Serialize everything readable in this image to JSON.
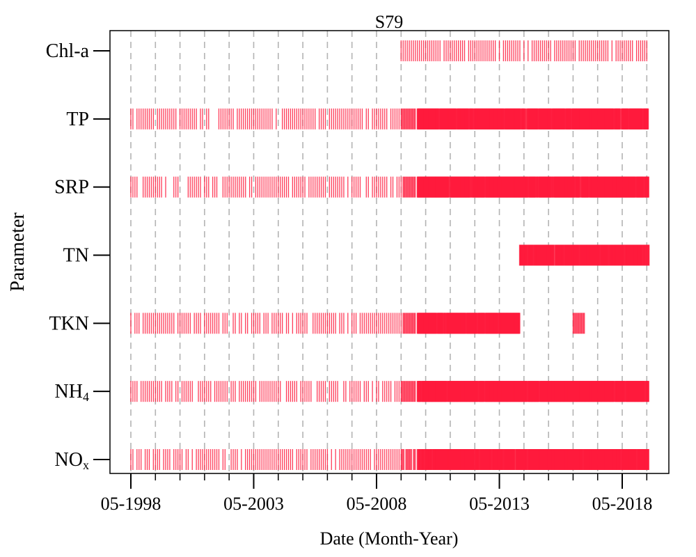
{
  "chart_data": {
    "type": "timeline",
    "title": "S79",
    "xlabel": "Date (Month-Year)",
    "ylabel": "Parameter",
    "x_range": [
      "1997-09",
      "2020-09"
    ],
    "x_ticks": [
      "1998-05",
      "2003-05",
      "2008-05",
      "2013-05",
      "2018-05"
    ],
    "x_tick_labels": [
      "05-1998",
      "05-2003",
      "05-2008",
      "05-2013",
      "05-2018"
    ],
    "grid": {
      "x_dashed": true,
      "interval": "1 year (May)"
    },
    "mark_color": "#ff1a3c",
    "categories": [
      {
        "label": "Chl-a",
        "base": "Chl-a",
        "sub": ""
      },
      {
        "label": "TP",
        "base": "TP",
        "sub": ""
      },
      {
        "label": "SRP",
        "base": "SRP",
        "sub": ""
      },
      {
        "label": "TN",
        "base": "TN",
        "sub": ""
      },
      {
        "label": "TKN",
        "base": "TKN",
        "sub": ""
      },
      {
        "label": "NH4",
        "base": "NH",
        "sub": "4"
      },
      {
        "label": "NOx",
        "base": "NO",
        "sub": "x"
      }
    ],
    "series": [
      {
        "name": "Chl-a",
        "segments": [
          {
            "start": "2009-05",
            "end": "2019-05",
            "frequency": "monthly"
          }
        ]
      },
      {
        "name": "TP",
        "segments": [
          {
            "start": "1998-05",
            "end": "2009-04",
            "frequency": "monthly"
          },
          {
            "start": "2009-05",
            "end": "2009-12",
            "frequency": "biweekly"
          },
          {
            "start": "2010-01",
            "end": "2019-06",
            "frequency": "weekly"
          }
        ]
      },
      {
        "name": "SRP",
        "segments": [
          {
            "start": "1998-05",
            "end": "2009-04",
            "frequency": "monthly"
          },
          {
            "start": "2009-05",
            "end": "2009-12",
            "frequency": "biweekly"
          },
          {
            "start": "2010-01",
            "end": "2019-06",
            "frequency": "weekly"
          }
        ]
      },
      {
        "name": "TN",
        "segments": [
          {
            "start": "2014-03",
            "end": "2019-06",
            "frequency": "weekly"
          }
        ]
      },
      {
        "name": "TKN",
        "segments": [
          {
            "start": "1998-05",
            "end": "2009-04",
            "frequency": "monthly"
          },
          {
            "start": "2009-05",
            "end": "2009-12",
            "frequency": "biweekly"
          },
          {
            "start": "2010-01",
            "end": "2014-03",
            "frequency": "weekly"
          },
          {
            "start": "2016-05",
            "end": "2016-11",
            "frequency": "biweekly"
          }
        ]
      },
      {
        "name": "NH4",
        "segments": [
          {
            "start": "1998-05",
            "end": "2009-04",
            "frequency": "monthly"
          },
          {
            "start": "2009-05",
            "end": "2009-12",
            "frequency": "biweekly"
          },
          {
            "start": "2010-01",
            "end": "2019-06",
            "frequency": "weekly"
          }
        ]
      },
      {
        "name": "NOx",
        "segments": [
          {
            "start": "1998-05",
            "end": "2009-04",
            "frequency": "monthly"
          },
          {
            "start": "2009-05",
            "end": "2009-12",
            "frequency": "biweekly"
          },
          {
            "start": "2010-01",
            "end": "2019-06",
            "frequency": "weekly"
          }
        ]
      }
    ]
  }
}
